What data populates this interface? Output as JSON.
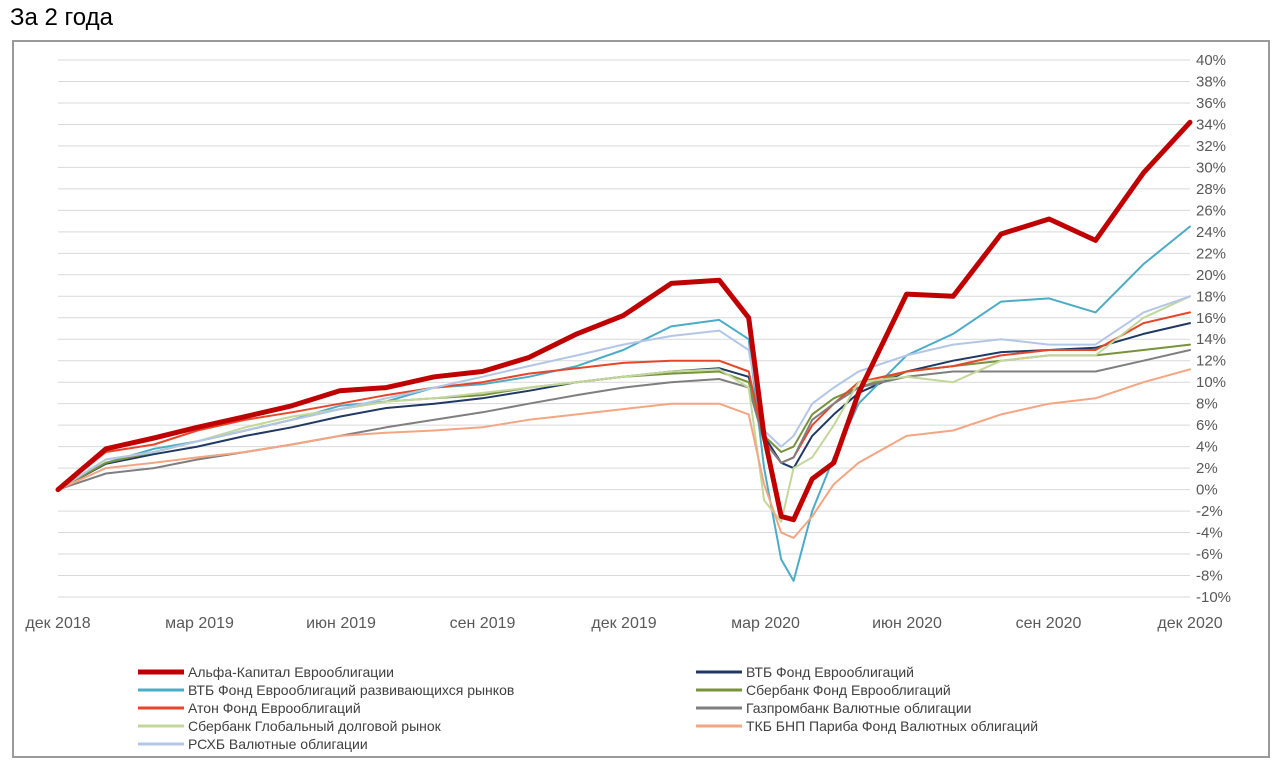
{
  "page": {
    "title": "За 2 года"
  },
  "chart_data": {
    "type": "line",
    "title": "",
    "xlabel": "",
    "ylabel": "",
    "x": [
      "2018-12-01",
      "2019-01-01",
      "2019-02-01",
      "2019-03-01",
      "2019-04-01",
      "2019-05-01",
      "2019-06-01",
      "2019-07-01",
      "2019-08-01",
      "2019-09-01",
      "2019-10-01",
      "2019-11-01",
      "2019-12-01",
      "2020-01-01",
      "2020-02-01",
      "2020-02-20",
      "2020-03-01",
      "2020-03-12",
      "2020-03-20",
      "2020-04-01",
      "2020-04-15",
      "2020-05-01",
      "2020-06-01",
      "2020-07-01",
      "2020-08-01",
      "2020-09-01",
      "2020-10-01",
      "2020-11-01",
      "2020-12-01"
    ],
    "x_ticks": [
      "дек 2018",
      "мар 2019",
      "июн 2019",
      "сен 2019",
      "дек 2019",
      "мар 2020",
      "июн 2020",
      "сен 2020",
      "дек 2020"
    ],
    "ylim": [
      -10,
      40
    ],
    "y_ticks": [
      "40%",
      "38%",
      "36%",
      "34%",
      "32%",
      "30%",
      "28%",
      "26%",
      "24%",
      "22%",
      "20%",
      "18%",
      "16%",
      "14%",
      "12%",
      "10%",
      "8%",
      "6%",
      "4%",
      "2%",
      "0%",
      "-2%",
      "-4%",
      "-6%",
      "-8%",
      "-10%"
    ],
    "y_unit": "%",
    "grid": true,
    "legend_position": "bottom",
    "series": [
      {
        "name": "Альфа-Капитал Еврооблигации",
        "color": "#c00000",
        "width": 5,
        "values": [
          0,
          3.8,
          4.8,
          5.8,
          6.8,
          7.8,
          9.2,
          9.5,
          10.5,
          11.0,
          12.3,
          14.5,
          16.2,
          19.2,
          19.5,
          16.0,
          5.0,
          -2.5,
          -2.8,
          1.0,
          2.5,
          9.0,
          18.2,
          18.0,
          23.8,
          25.2,
          23.2,
          29.5,
          34.2
        ]
      },
      {
        "name": "ВТБ Фонд Еврооблигаций",
        "color": "#1f3864",
        "width": 2,
        "values": [
          0,
          2.4,
          3.3,
          4.0,
          5.0,
          5.8,
          6.8,
          7.6,
          8.0,
          8.5,
          9.2,
          10.0,
          10.5,
          11.0,
          11.3,
          10.5,
          5.0,
          2.5,
          2.0,
          5.0,
          7.0,
          9.0,
          11.0,
          12.0,
          12.8,
          13.0,
          13.2,
          14.5,
          15.5
        ]
      },
      {
        "name": "ВТБ Фонд Еврооблигаций развивающихся рынков",
        "color": "#4bacc6",
        "width": 2,
        "values": [
          0,
          2.5,
          3.8,
          4.5,
          5.5,
          6.5,
          7.8,
          8.2,
          9.5,
          9.8,
          10.5,
          11.5,
          13.0,
          15.2,
          15.8,
          14.0,
          2.0,
          -6.5,
          -8.5,
          -2.0,
          3.0,
          8.0,
          12.5,
          14.5,
          17.5,
          17.8,
          16.5,
          21.0,
          24.5
        ]
      },
      {
        "name": "Сбербанк Фонд Еврооблигаций",
        "color": "#77933c",
        "width": 2,
        "values": [
          0,
          2.5,
          3.5,
          4.5,
          5.5,
          6.5,
          7.5,
          8.2,
          8.5,
          8.8,
          9.5,
          10.0,
          10.5,
          10.8,
          11.0,
          10.0,
          5.0,
          3.5,
          4.0,
          7.0,
          8.5,
          9.5,
          11.0,
          11.5,
          12.0,
          12.5,
          12.5,
          13.0,
          13.5
        ]
      },
      {
        "name": "Атон Фонд Еврооблигаций",
        "color": "#e8462a",
        "width": 2,
        "values": [
          0,
          3.5,
          4.2,
          5.5,
          6.5,
          7.2,
          8.0,
          8.8,
          9.5,
          10.0,
          10.8,
          11.3,
          11.8,
          12.0,
          12.0,
          11.0,
          4.5,
          2.5,
          3.0,
          6.0,
          8.0,
          10.0,
          11.0,
          11.5,
          12.5,
          13.0,
          13.0,
          15.5,
          16.5
        ]
      },
      {
        "name": "Газпромбанк Валютные облигации",
        "color": "#7f7f7f",
        "width": 2,
        "values": [
          0,
          1.5,
          2.0,
          2.8,
          3.5,
          4.2,
          5.0,
          5.8,
          6.5,
          7.2,
          8.0,
          8.8,
          9.5,
          10.0,
          10.3,
          9.5,
          4.5,
          2.5,
          3.0,
          6.5,
          8.0,
          9.5,
          10.5,
          11.0,
          11.0,
          11.0,
          11.0,
          12.0,
          13.0
        ]
      },
      {
        "name": "Сбербанк Глобальный долговой рынок",
        "color": "#c4d79b",
        "width": 2,
        "values": [
          0,
          2.8,
          3.5,
          4.5,
          5.8,
          6.8,
          7.5,
          8.2,
          8.5,
          9.0,
          9.5,
          10.0,
          10.5,
          11.0,
          11.2,
          9.5,
          -1.0,
          -3.0,
          2.0,
          3.0,
          6.0,
          10.0,
          10.5,
          10.0,
          12.0,
          12.5,
          12.5,
          16.0,
          18.0
        ]
      },
      {
        "name": "ТКБ БНП Париба Фонд Валютных облигаций",
        "color": "#f4a582",
        "width": 2,
        "values": [
          0,
          2.0,
          2.5,
          3.0,
          3.5,
          4.2,
          5.0,
          5.3,
          5.5,
          5.8,
          6.5,
          7.0,
          7.5,
          8.0,
          8.0,
          7.0,
          0.5,
          -4.0,
          -4.5,
          -2.5,
          0.5,
          2.5,
          5.0,
          5.5,
          7.0,
          8.0,
          8.5,
          10.0,
          11.2
        ]
      },
      {
        "name": "РСХБ Валютные облигации",
        "color": "#b4c6e7",
        "width": 2,
        "values": [
          0,
          2.8,
          3.5,
          4.5,
          5.5,
          6.5,
          7.5,
          8.5,
          9.5,
          10.5,
          11.5,
          12.5,
          13.5,
          14.3,
          14.8,
          13.0,
          5.5,
          4.0,
          5.0,
          8.0,
          9.5,
          11.0,
          12.5,
          13.5,
          14.0,
          13.5,
          13.5,
          16.5,
          18.0
        ]
      }
    ]
  }
}
